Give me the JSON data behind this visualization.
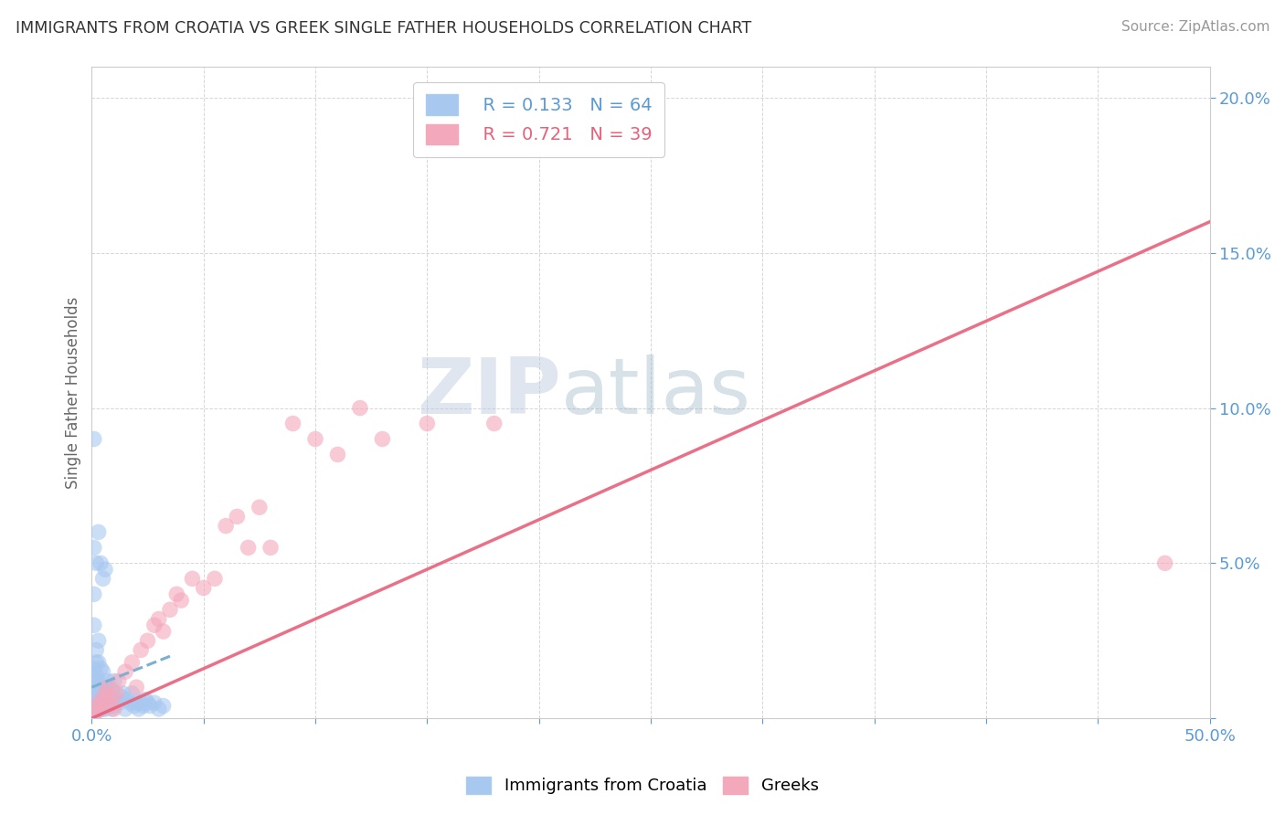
{
  "title": "IMMIGRANTS FROM CROATIA VS GREEK SINGLE FATHER HOUSEHOLDS CORRELATION CHART",
  "source": "Source: ZipAtlas.com",
  "ylabel": "Single Father Households",
  "xlim": [
    0,
    0.5
  ],
  "ylim": [
    0,
    0.21
  ],
  "xticks": [
    0.0,
    0.05,
    0.1,
    0.15,
    0.2,
    0.25,
    0.3,
    0.35,
    0.4,
    0.45,
    0.5
  ],
  "yticks": [
    0.0,
    0.05,
    0.1,
    0.15,
    0.2
  ],
  "xtick_labels": [
    "0.0%",
    "",
    "",
    "",
    "",
    "",
    "",
    "",
    "",
    "",
    "50.0%"
  ],
  "ytick_labels": [
    "",
    "5.0%",
    "10.0%",
    "15.0%",
    "20.0%"
  ],
  "legend_r1": "R = 0.133",
  "legend_n1": "N = 64",
  "legend_r2": "R = 0.721",
  "legend_n2": "N = 39",
  "color_blue": "#A8C8F0",
  "color_pink": "#F4A8BC",
  "color_blue_line": "#7BAFD4",
  "color_pink_line": "#E8607A",
  "color_axis_text": "#5B9BD5",
  "color_watermark": "#C8D8EE",
  "watermark_text": "ZIPatlas",
  "blue_scatter_x": [
    0.001,
    0.001,
    0.001,
    0.001,
    0.001,
    0.001,
    0.001,
    0.001,
    0.002,
    0.002,
    0.002,
    0.002,
    0.002,
    0.002,
    0.002,
    0.003,
    0.003,
    0.003,
    0.003,
    0.003,
    0.004,
    0.004,
    0.004,
    0.005,
    0.005,
    0.005,
    0.006,
    0.006,
    0.007,
    0.007,
    0.008,
    0.008,
    0.009,
    0.009,
    0.01,
    0.01,
    0.011,
    0.012,
    0.013,
    0.014,
    0.015,
    0.016,
    0.017,
    0.018,
    0.019,
    0.02,
    0.021,
    0.022,
    0.023,
    0.024,
    0.025,
    0.026,
    0.028,
    0.03,
    0.032,
    0.001,
    0.001,
    0.002,
    0.003,
    0.004,
    0.005,
    0.006,
    0.001,
    0.001
  ],
  "blue_scatter_y": [
    0.002,
    0.004,
    0.006,
    0.008,
    0.01,
    0.012,
    0.014,
    0.016,
    0.002,
    0.004,
    0.006,
    0.01,
    0.014,
    0.018,
    0.022,
    0.003,
    0.007,
    0.012,
    0.018,
    0.025,
    0.004,
    0.01,
    0.016,
    0.003,
    0.008,
    0.015,
    0.003,
    0.01,
    0.005,
    0.012,
    0.004,
    0.01,
    0.003,
    0.009,
    0.004,
    0.012,
    0.006,
    0.005,
    0.007,
    0.008,
    0.003,
    0.006,
    0.005,
    0.008,
    0.004,
    0.005,
    0.003,
    0.005,
    0.004,
    0.006,
    0.005,
    0.004,
    0.005,
    0.003,
    0.004,
    0.03,
    0.04,
    0.05,
    0.06,
    0.05,
    0.045,
    0.048,
    0.09,
    0.055
  ],
  "pink_scatter_x": [
    0.001,
    0.002,
    0.003,
    0.004,
    0.005,
    0.006,
    0.007,
    0.008,
    0.009,
    0.01,
    0.011,
    0.012,
    0.015,
    0.018,
    0.02,
    0.022,
    0.025,
    0.028,
    0.03,
    0.032,
    0.035,
    0.038,
    0.04,
    0.045,
    0.05,
    0.055,
    0.06,
    0.065,
    0.07,
    0.075,
    0.08,
    0.09,
    0.1,
    0.11,
    0.12,
    0.13,
    0.15,
    0.18,
    0.48
  ],
  "pink_scatter_y": [
    0.001,
    0.003,
    0.005,
    0.003,
    0.006,
    0.008,
    0.01,
    0.004,
    0.007,
    0.003,
    0.008,
    0.012,
    0.015,
    0.018,
    0.01,
    0.022,
    0.025,
    0.03,
    0.032,
    0.028,
    0.035,
    0.04,
    0.038,
    0.045,
    0.042,
    0.045,
    0.062,
    0.065,
    0.055,
    0.068,
    0.055,
    0.095,
    0.09,
    0.085,
    0.1,
    0.09,
    0.095,
    0.095,
    0.05
  ],
  "blue_trend_x": [
    0.0,
    0.035
  ],
  "blue_trend_y_start": 0.01,
  "blue_trend_y_end": 0.02,
  "pink_trend_x": [
    0.0,
    0.5
  ],
  "pink_trend_y_start": 0.0,
  "pink_trend_y_end": 0.16
}
